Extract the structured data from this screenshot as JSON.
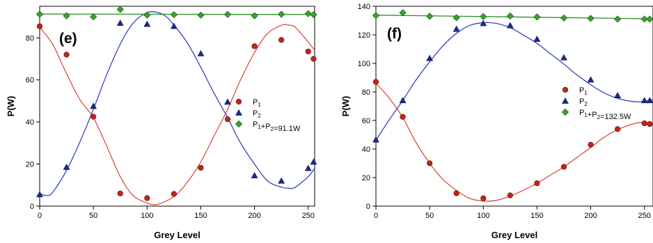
{
  "chart_data": [
    {
      "type": "scatter",
      "panel_label": "(e)",
      "xlabel": "Grey Level",
      "ylabel": "P(W)",
      "xlim": [
        0,
        256
      ],
      "ylim": [
        0,
        95
      ],
      "xticks": [
        0,
        50,
        100,
        150,
        200,
        250
      ],
      "yticks": [
        0,
        20,
        40,
        60,
        80
      ],
      "legend_position": "right",
      "grid": false,
      "series": [
        {
          "name": "P1",
          "marker": "circle",
          "color": "#c0261c",
          "line_color": "#d9503f",
          "x": [
            0,
            25,
            50,
            75,
            100,
            125,
            150,
            175,
            200,
            225,
            250,
            255
          ],
          "y": [
            85.5,
            72,
            42.5,
            6,
            3.8,
            5.8,
            18.2,
            41.3,
            76,
            79,
            73.5,
            70
          ],
          "fit_x": [
            0,
            12,
            25,
            37,
            50,
            62,
            75,
            87,
            100,
            106,
            112,
            125,
            137,
            150,
            162,
            175,
            187,
            200,
            212,
            225,
            232,
            238,
            250,
            256
          ],
          "fit_y": [
            85,
            77,
            63,
            51,
            42,
            29,
            14,
            5,
            1.5,
            0.7,
            1.2,
            4.5,
            11,
            21,
            33,
            46,
            60,
            73,
            82,
            86,
            86,
            85,
            78,
            74
          ]
        },
        {
          "name": "P2",
          "marker": "triangle",
          "color": "#1a2a8c",
          "line_color": "#3344bb",
          "x": [
            0,
            25,
            50,
            75,
            100,
            125,
            150,
            175,
            200,
            225,
            250,
            255
          ],
          "y": [
            5.5,
            18.5,
            47.5,
            87,
            86.5,
            85.5,
            72.5,
            49.5,
            14.5,
            12,
            18,
            21
          ],
          "fit_x": [
            0,
            6,
            12,
            25,
            37,
            50,
            62,
            75,
            87,
            100,
            110,
            118,
            125,
            137,
            150,
            162,
            175,
            187,
            200,
            212,
            225,
            232,
            238,
            250,
            256
          ],
          "fit_y": [
            6,
            5,
            6.5,
            17,
            30,
            46,
            62,
            77,
            87,
            92,
            92,
            90,
            86,
            78,
            66,
            54,
            42,
            30,
            20,
            12,
            9,
            8.5,
            9,
            14,
            18
          ]
        },
        {
          "name": "P1+P2=91.1W",
          "marker": "diamond",
          "color": "#3ba12f",
          "line_color": "#2e8f24",
          "x": [
            0,
            25,
            50,
            75,
            100,
            125,
            150,
            175,
            200,
            225,
            250,
            255
          ],
          "y": [
            91.2,
            90.5,
            90,
            93.5,
            90.8,
            91,
            90.8,
            91.1,
            90.5,
            91.2,
            91.5,
            91
          ],
          "fit_x": [
            0,
            256
          ],
          "fit_y": [
            91.3,
            91.1
          ]
        }
      ]
    },
    {
      "type": "scatter",
      "panel_label": "(f)",
      "xlabel": "Grey Level",
      "ylabel": "P(W)",
      "xlim": [
        0,
        258
      ],
      "ylim": [
        0,
        140
      ],
      "xticks": [
        0,
        50,
        100,
        150,
        200,
        250
      ],
      "yticks": [
        0,
        20,
        40,
        60,
        80,
        100,
        120,
        140
      ],
      "legend_position": "right",
      "grid": false,
      "series": [
        {
          "name": "P1",
          "marker": "circle",
          "color": "#c0261c",
          "line_color": "#d9503f",
          "x": [
            0,
            25,
            50,
            75,
            100,
            125,
            150,
            175,
            200,
            225,
            250,
            255
          ],
          "y": [
            87,
            62.5,
            30,
            9,
            5.5,
            7.5,
            16,
            27.5,
            43,
            54,
            58,
            57.5
          ],
          "fit_x": [
            0,
            12,
            25,
            37,
            50,
            62,
            75,
            87,
            100,
            112,
            125,
            137,
            150,
            162,
            175,
            187,
            200,
            212,
            225,
            237,
            245,
            250,
            258
          ],
          "fit_y": [
            86,
            76,
            62,
            45,
            30,
            19,
            11,
            5.5,
            3.5,
            4,
            7,
            11,
            16,
            21.5,
            27.5,
            34,
            41,
            48,
            53.5,
            57,
            58.5,
            58.5,
            58
          ]
        },
        {
          "name": "P2",
          "marker": "triangle",
          "color": "#1a2a8c",
          "line_color": "#3344bb",
          "x": [
            0,
            25,
            50,
            75,
            100,
            125,
            150,
            175,
            200,
            225,
            250,
            255
          ],
          "y": [
            46.5,
            74,
            103.5,
            124,
            128,
            126.5,
            117,
            104,
            88.5,
            77.5,
            74,
            74
          ],
          "fit_x": [
            0,
            12,
            25,
            37,
            50,
            62,
            75,
            87,
            100,
            112,
            125,
            137,
            150,
            162,
            175,
            187,
            200,
            212,
            225,
            237,
            245,
            250,
            258
          ],
          "fit_y": [
            46,
            60,
            74,
            88,
            101,
            112,
            121,
            126.5,
            128.5,
            128,
            125,
            120,
            114,
            107,
            99.5,
            92,
            85,
            79.5,
            75.5,
            73.5,
            73,
            73.5,
            74.5
          ]
        },
        {
          "name": "P1+P2=132.5W",
          "marker": "diamond",
          "color": "#3ba12f",
          "line_color": "#2e8f24",
          "x": [
            0,
            25,
            50,
            75,
            100,
            125,
            150,
            175,
            200,
            225,
            250,
            255
          ],
          "y": [
            133.5,
            135.5,
            133,
            132,
            132.8,
            133.2,
            132.5,
            131.8,
            131.5,
            131,
            131,
            131
          ],
          "fit_x": [
            0,
            258
          ],
          "fit_y": [
            133.8,
            131.2
          ]
        }
      ]
    }
  ]
}
